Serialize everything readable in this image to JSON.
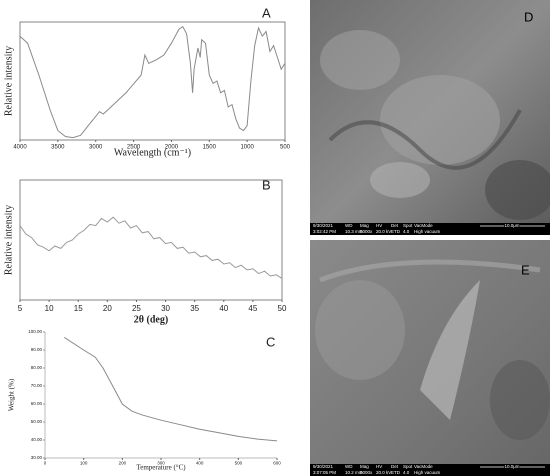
{
  "chart_data": [
    {
      "type": "line",
      "label": "A",
      "xlabel": "Wavelength (cm⁻¹)",
      "ylabel": "Relative intensity",
      "color": "#8a8a8a",
      "x": [
        4000,
        3900,
        3750,
        3600,
        3500,
        3400,
        3300,
        3200,
        3100,
        3000,
        2950,
        2900,
        2800,
        2600,
        2400,
        2350,
        2300,
        2200,
        2100,
        2000,
        1900,
        1850,
        1800,
        1750,
        1720,
        1700,
        1650,
        1620,
        1600,
        1550,
        1500,
        1450,
        1400,
        1350,
        1300,
        1250,
        1200,
        1150,
        1100,
        1050,
        1000,
        950,
        900,
        850,
        800,
        750,
        700,
        650,
        600,
        550,
        500
      ],
      "values": [
        88,
        82,
        55,
        25,
        8,
        3,
        2,
        4,
        12,
        20,
        24,
        22,
        28,
        40,
        55,
        72,
        65,
        68,
        72,
        82,
        94,
        96,
        90,
        65,
        40,
        60,
        78,
        70,
        85,
        82,
        55,
        48,
        50,
        40,
        42,
        28,
        30,
        18,
        10,
        8,
        12,
        50,
        80,
        95,
        88,
        92,
        75,
        80,
        70,
        60,
        65
      ],
      "xlim": [
        4000,
        500
      ],
      "xticks": [
        4000,
        3500,
        3000,
        2500,
        2000,
        1500,
        1000,
        500
      ],
      "ylim": [
        0,
        100
      ]
    },
    {
      "type": "line",
      "label": "B",
      "xlabel": "2θ (deg)",
      "ylabel": "Relative intensity",
      "color": "#9a9a9a",
      "x": [
        5,
        6,
        7,
        8,
        9,
        10,
        11,
        12,
        13,
        14,
        15,
        16,
        17,
        18,
        19,
        20,
        21,
        22,
        23,
        24,
        25,
        26,
        27,
        28,
        29,
        30,
        31,
        32,
        33,
        34,
        35,
        36,
        37,
        38,
        39,
        40,
        41,
        42,
        43,
        44,
        45,
        46,
        47,
        48,
        49,
        50
      ],
      "values": [
        62,
        55,
        52,
        46,
        44,
        41,
        45,
        43,
        48,
        50,
        55,
        58,
        63,
        62,
        68,
        65,
        69,
        64,
        66,
        60,
        62,
        56,
        57,
        51,
        52,
        47,
        48,
        43,
        44,
        39,
        40,
        36,
        37,
        33,
        34,
        30,
        31,
        27,
        29,
        25,
        26,
        22,
        24,
        20,
        21,
        18
      ],
      "xlim": [
        5,
        50
      ],
      "xticks": [
        5,
        10,
        15,
        20,
        25,
        30,
        35,
        40,
        45,
        50
      ],
      "ylim": [
        0,
        100
      ]
    },
    {
      "type": "line",
      "label": "C",
      "xlabel": "Temperature (°C)",
      "ylabel": "Weight (%)",
      "color": "#8a8a8a",
      "x": [
        50,
        100,
        130,
        150,
        175,
        200,
        225,
        250,
        300,
        350,
        400,
        450,
        500,
        550,
        600
      ],
      "values": [
        97,
        90,
        86,
        80,
        70,
        60,
        56,
        54,
        51,
        48.5,
        46,
        44,
        42,
        40.5,
        39.5
      ],
      "xlim": [
        0,
        600
      ],
      "xticks": [
        0,
        100,
        200,
        300,
        400,
        500,
        600
      ],
      "ylim": [
        30,
        100
      ],
      "yticks": [
        {
          "value": 30,
          "label": "30.00"
        },
        {
          "value": 40,
          "label": "40.00"
        },
        {
          "value": 50,
          "label": "50.00"
        },
        {
          "value": 60,
          "label": "60.00"
        },
        {
          "value": 70,
          "label": "70.00"
        },
        {
          "value": 80,
          "label": "80.00"
        },
        {
          "value": 90,
          "label": "90.00"
        },
        {
          "value": 100,
          "label": "100.00"
        }
      ]
    }
  ],
  "images": [
    {
      "label": "D",
      "header": [
        "9/30/2021",
        "WD",
        "Mag",
        "HV",
        "Det",
        "Spot",
        "VacMode"
      ],
      "info": [
        "3:02:42 PM",
        "10.3 mm",
        "5000x",
        "20.0 kV",
        "ETD",
        "4.0",
        "High vacuum"
      ],
      "scale": "10.0μm"
    },
    {
      "label": "E",
      "header": [
        "9/30/2021",
        "WD",
        "Mag",
        "HV",
        "Det",
        "Spot",
        "VacMode"
      ],
      "info": [
        "3:07:05 PM",
        "10.2 mm",
        "5000x",
        "20.0 kV",
        "ETD",
        "4.0",
        "High vacuum"
      ],
      "scale": "10.0μm"
    }
  ]
}
